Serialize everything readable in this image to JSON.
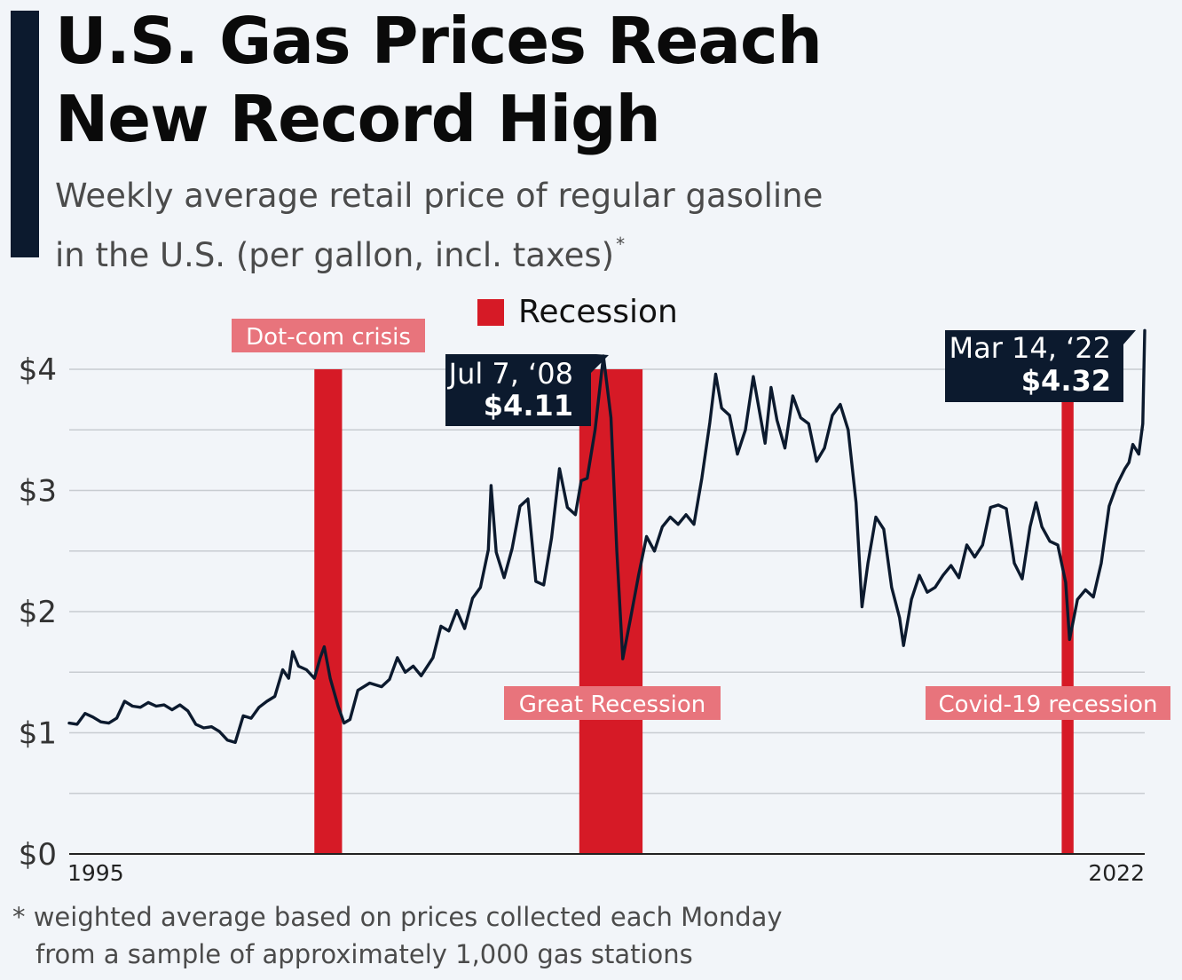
{
  "header": {
    "title_line1": "U.S. Gas Prices Reach",
    "title_line2": "New Record High",
    "subtitle_line1": "Weekly average retail price of regular gasoline",
    "subtitle_line2": "in the U.S. (per gallon, incl. taxes)",
    "subtitle_marker": "*"
  },
  "footnote": {
    "line1": "* weighted average based on prices collected each Monday",
    "line2": "from a sample of approximately 1,000 gas stations"
  },
  "colors": {
    "line": "#0c1a2e",
    "recession": "#d61a26",
    "recession_label_bg": "#e8747c",
    "callout_bg": "#0c1a2e",
    "grid": "#c8ccd1",
    "axis": "#222222"
  },
  "chart_data": {
    "type": "line",
    "title": "U.S. Gas Prices Reach New Record High",
    "ylabel": "",
    "xlabel": "",
    "x_tick_labels": [
      "1995",
      "2022"
    ],
    "y_tick_labels": [
      "$0",
      "$1",
      "$2",
      "$3",
      "$4"
    ],
    "ylim": [
      0,
      4
    ],
    "grid": true,
    "legend": {
      "position": "top-center",
      "items": [
        {
          "label": "Recession",
          "color": "#d61a26"
        }
      ]
    },
    "recessions": [
      {
        "label": "Dot-com crisis",
        "start": 2001.2,
        "end": 2001.9
      },
      {
        "label": "Great Recession",
        "start": 2007.9,
        "end": 2009.5
      },
      {
        "label": "Covid-19 recession",
        "start": 2020.1,
        "end": 2020.4
      }
    ],
    "annotations": [
      {
        "date_label": "Jul 7, ‘08",
        "value_label": "$4.11",
        "x": 2008.51,
        "y": 4.11
      },
      {
        "date_label": "Mar 14, ‘22",
        "value_label": "$4.32",
        "x": 2022.2,
        "y": 4.32
      }
    ],
    "series": [
      {
        "points": [
          [
            1995.0,
            1.08
          ],
          [
            1995.2,
            1.07
          ],
          [
            1995.4,
            1.16
          ],
          [
            1995.6,
            1.13
          ],
          [
            1995.8,
            1.09
          ],
          [
            1996.0,
            1.08
          ],
          [
            1996.2,
            1.12
          ],
          [
            1996.4,
            1.26
          ],
          [
            1996.6,
            1.22
          ],
          [
            1996.8,
            1.21
          ],
          [
            1997.0,
            1.25
          ],
          [
            1997.2,
            1.22
          ],
          [
            1997.4,
            1.23
          ],
          [
            1997.6,
            1.19
          ],
          [
            1997.8,
            1.23
          ],
          [
            1998.0,
            1.18
          ],
          [
            1998.2,
            1.07
          ],
          [
            1998.4,
            1.04
          ],
          [
            1998.6,
            1.05
          ],
          [
            1998.8,
            1.01
          ],
          [
            1999.0,
            0.94
          ],
          [
            1999.2,
            0.92
          ],
          [
            1999.4,
            1.14
          ],
          [
            1999.6,
            1.12
          ],
          [
            1999.8,
            1.21
          ],
          [
            2000.0,
            1.26
          ],
          [
            2000.2,
            1.3
          ],
          [
            2000.4,
            1.52
          ],
          [
            2000.55,
            1.45
          ],
          [
            2000.65,
            1.67
          ],
          [
            2000.8,
            1.55
          ],
          [
            2001.0,
            1.52
          ],
          [
            2001.2,
            1.45
          ],
          [
            2001.35,
            1.62
          ],
          [
            2001.45,
            1.71
          ],
          [
            2001.6,
            1.45
          ],
          [
            2001.8,
            1.22
          ],
          [
            2001.95,
            1.08
          ],
          [
            2002.1,
            1.11
          ],
          [
            2002.3,
            1.35
          ],
          [
            2002.6,
            1.41
          ],
          [
            2002.9,
            1.38
          ],
          [
            2003.1,
            1.44
          ],
          [
            2003.3,
            1.62
          ],
          [
            2003.5,
            1.5
          ],
          [
            2003.7,
            1.55
          ],
          [
            2003.9,
            1.47
          ],
          [
            2004.2,
            1.62
          ],
          [
            2004.4,
            1.88
          ],
          [
            2004.6,
            1.84
          ],
          [
            2004.8,
            2.01
          ],
          [
            2005.0,
            1.86
          ],
          [
            2005.2,
            2.11
          ],
          [
            2005.4,
            2.2
          ],
          [
            2005.6,
            2.51
          ],
          [
            2005.67,
            3.04
          ],
          [
            2005.8,
            2.49
          ],
          [
            2006.0,
            2.28
          ],
          [
            2006.2,
            2.52
          ],
          [
            2006.4,
            2.87
          ],
          [
            2006.6,
            2.93
          ],
          [
            2006.8,
            2.25
          ],
          [
            2007.0,
            2.22
          ],
          [
            2007.2,
            2.61
          ],
          [
            2007.4,
            3.18
          ],
          [
            2007.6,
            2.86
          ],
          [
            2007.8,
            2.8
          ],
          [
            2007.95,
            3.08
          ],
          [
            2008.1,
            3.1
          ],
          [
            2008.3,
            3.5
          ],
          [
            2008.51,
            4.11
          ],
          [
            2008.7,
            3.6
          ],
          [
            2008.85,
            2.5
          ],
          [
            2009.0,
            1.61
          ],
          [
            2009.2,
            1.95
          ],
          [
            2009.4,
            2.3
          ],
          [
            2009.6,
            2.62
          ],
          [
            2009.8,
            2.5
          ],
          [
            2010.0,
            2.7
          ],
          [
            2010.2,
            2.78
          ],
          [
            2010.4,
            2.72
          ],
          [
            2010.6,
            2.8
          ],
          [
            2010.8,
            2.72
          ],
          [
            2011.0,
            3.1
          ],
          [
            2011.2,
            3.56
          ],
          [
            2011.35,
            3.96
          ],
          [
            2011.5,
            3.68
          ],
          [
            2011.7,
            3.62
          ],
          [
            2011.9,
            3.3
          ],
          [
            2012.1,
            3.5
          ],
          [
            2012.3,
            3.94
          ],
          [
            2012.6,
            3.39
          ],
          [
            2012.75,
            3.85
          ],
          [
            2012.9,
            3.58
          ],
          [
            2013.1,
            3.35
          ],
          [
            2013.3,
            3.78
          ],
          [
            2013.5,
            3.6
          ],
          [
            2013.7,
            3.55
          ],
          [
            2013.9,
            3.24
          ],
          [
            2014.1,
            3.35
          ],
          [
            2014.3,
            3.62
          ],
          [
            2014.5,
            3.71
          ],
          [
            2014.7,
            3.5
          ],
          [
            2014.9,
            2.9
          ],
          [
            2015.05,
            2.04
          ],
          [
            2015.2,
            2.4
          ],
          [
            2015.4,
            2.78
          ],
          [
            2015.6,
            2.68
          ],
          [
            2015.8,
            2.2
          ],
          [
            2016.0,
            1.95
          ],
          [
            2016.1,
            1.72
          ],
          [
            2016.3,
            2.1
          ],
          [
            2016.5,
            2.3
          ],
          [
            2016.7,
            2.16
          ],
          [
            2016.9,
            2.2
          ],
          [
            2017.1,
            2.3
          ],
          [
            2017.3,
            2.38
          ],
          [
            2017.5,
            2.28
          ],
          [
            2017.7,
            2.55
          ],
          [
            2017.9,
            2.45
          ],
          [
            2018.1,
            2.55
          ],
          [
            2018.3,
            2.86
          ],
          [
            2018.5,
            2.88
          ],
          [
            2018.7,
            2.85
          ],
          [
            2018.9,
            2.4
          ],
          [
            2019.1,
            2.27
          ],
          [
            2019.3,
            2.7
          ],
          [
            2019.45,
            2.9
          ],
          [
            2019.6,
            2.7
          ],
          [
            2019.8,
            2.58
          ],
          [
            2020.0,
            2.55
          ],
          [
            2020.2,
            2.24
          ],
          [
            2020.3,
            1.77
          ],
          [
            2020.5,
            2.1
          ],
          [
            2020.7,
            2.18
          ],
          [
            2020.9,
            2.12
          ],
          [
            2021.1,
            2.4
          ],
          [
            2021.3,
            2.87
          ],
          [
            2021.5,
            3.05
          ],
          [
            2021.7,
            3.18
          ],
          [
            2021.8,
            3.23
          ],
          [
            2021.9,
            3.38
          ],
          [
            2022.05,
            3.3
          ],
          [
            2022.15,
            3.55
          ],
          [
            2022.2,
            4.32
          ]
        ]
      }
    ]
  }
}
